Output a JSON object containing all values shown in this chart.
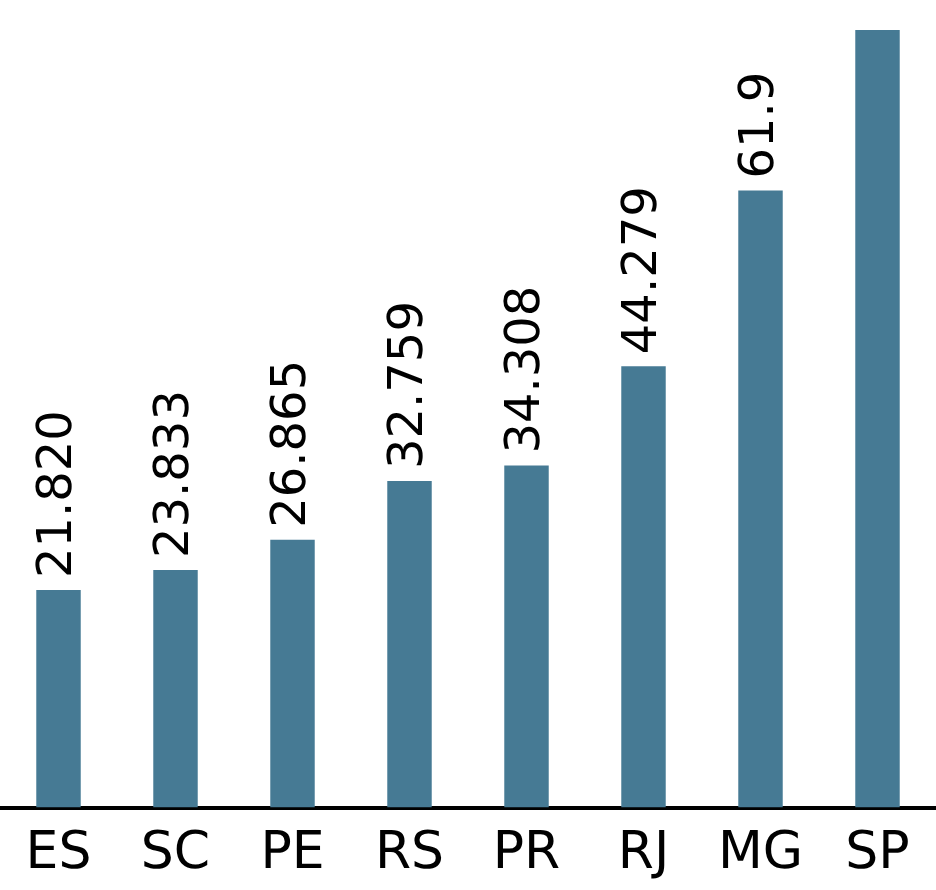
{
  "chart_data": {
    "type": "bar",
    "categories": [
      "ES",
      "SC",
      "PE",
      "RS",
      "PR",
      "RJ",
      "MG",
      "SP"
    ],
    "values": [
      21.82,
      23.833,
      26.865,
      32.759,
      34.308,
      44.279,
      61.9,
      78
    ],
    "value_labels": [
      "21.820",
      "23.833",
      "26.865",
      "32.759",
      "34.308",
      "44.279",
      "61.9",
      null
    ],
    "color": "#467a94",
    "ylim": [
      0,
      78
    ],
    "grid": false,
    "legend": false,
    "tick_labels": "x"
  }
}
